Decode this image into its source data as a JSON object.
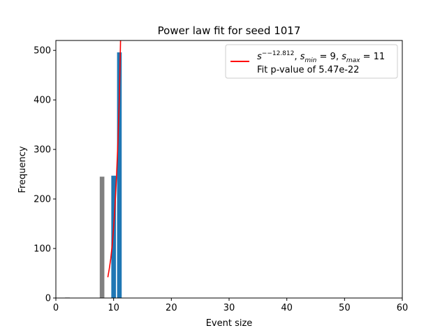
{
  "chart_data": {
    "type": "bar",
    "title": "Power law fit for seed 1017",
    "xlabel": "Event size",
    "ylabel": "Frequency",
    "xlim": [
      0,
      60
    ],
    "ylim": [
      0,
      520
    ],
    "xticks": [
      0,
      10,
      20,
      30,
      40,
      50,
      60
    ],
    "yticks": [
      0,
      100,
      200,
      300,
      400,
      500
    ],
    "grid": false,
    "legend_position": "top-right",
    "series": [
      {
        "role": "excluded",
        "color": "#808080",
        "points": [
          {
            "x": 2,
            "y": 1
          },
          {
            "x": 8,
            "y": 245
          }
        ]
      },
      {
        "role": "fitted",
        "color": "#1f77b4",
        "points": [
          {
            "x": 10,
            "y": 247
          },
          {
            "x": 11,
            "y": 496
          }
        ]
      }
    ],
    "fit_line": {
      "color": "#ff0000",
      "exponent": -12.812,
      "s_min": 9,
      "s_max": 11,
      "curve_points": [
        {
          "x": 9.0,
          "y": 42
        },
        {
          "x": 9.25,
          "y": 59
        },
        {
          "x": 9.5,
          "y": 79
        },
        {
          "x": 9.75,
          "y": 106
        },
        {
          "x": 10.0,
          "y": 142
        },
        {
          "x": 10.25,
          "y": 187
        },
        {
          "x": 10.5,
          "y": 244
        },
        {
          "x": 10.75,
          "y": 316
        },
        {
          "x": 11.0,
          "y": 407
        },
        {
          "x": 11.2,
          "y": 520
        }
      ]
    },
    "legend": {
      "label_formula": "s^{--12.812}, s_{min}=9, s_{max}=11",
      "label_line2": "Fit p-value of 5.47e-22"
    }
  }
}
